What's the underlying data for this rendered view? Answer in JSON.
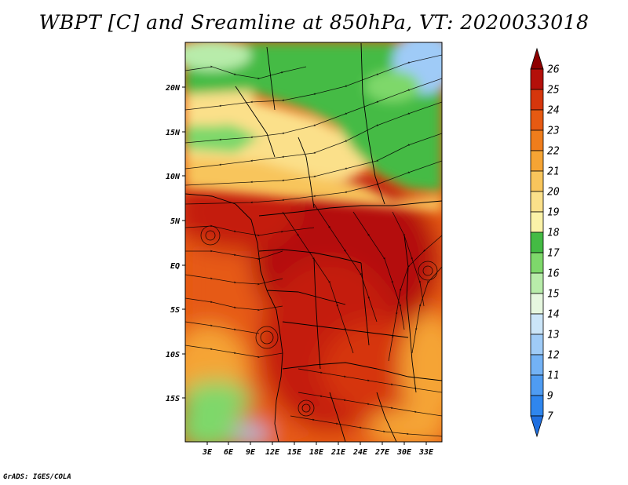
{
  "title": "WBPT [C] and Sreamline at 850hPa, VT: 2020033018",
  "footer": "GrADS: IGES/COLA",
  "map": {
    "lat_labels": [
      "20N",
      "15N",
      "10N",
      "5N",
      "EQ",
      "5S",
      "10S",
      "15S"
    ],
    "lon_labels": [
      "3E",
      "6E",
      "9E",
      "12E",
      "15E",
      "18E",
      "21E",
      "24E",
      "27E",
      "30E",
      "33E"
    ]
  },
  "colorbar": {
    "levels": [
      "7",
      "9",
      "11",
      "12",
      "13",
      "14",
      "15",
      "16",
      "17",
      "18",
      "19",
      "20",
      "21",
      "22",
      "23",
      "24",
      "25",
      "26"
    ],
    "colors": [
      "#1f6fe0",
      "#2f86ee",
      "#4f9cf2",
      "#73b2f5",
      "#9fcbf7",
      "#cbe5f8",
      "#e6f7df",
      "#b8ecaa",
      "#7ed86b",
      "#44bb44",
      "#fbf2a8",
      "#fbe08a",
      "#f8c55c",
      "#f5a434",
      "#ef7d1c",
      "#e65a12",
      "#d6360c",
      "#b4100a",
      "#8e0000"
    ]
  }
}
